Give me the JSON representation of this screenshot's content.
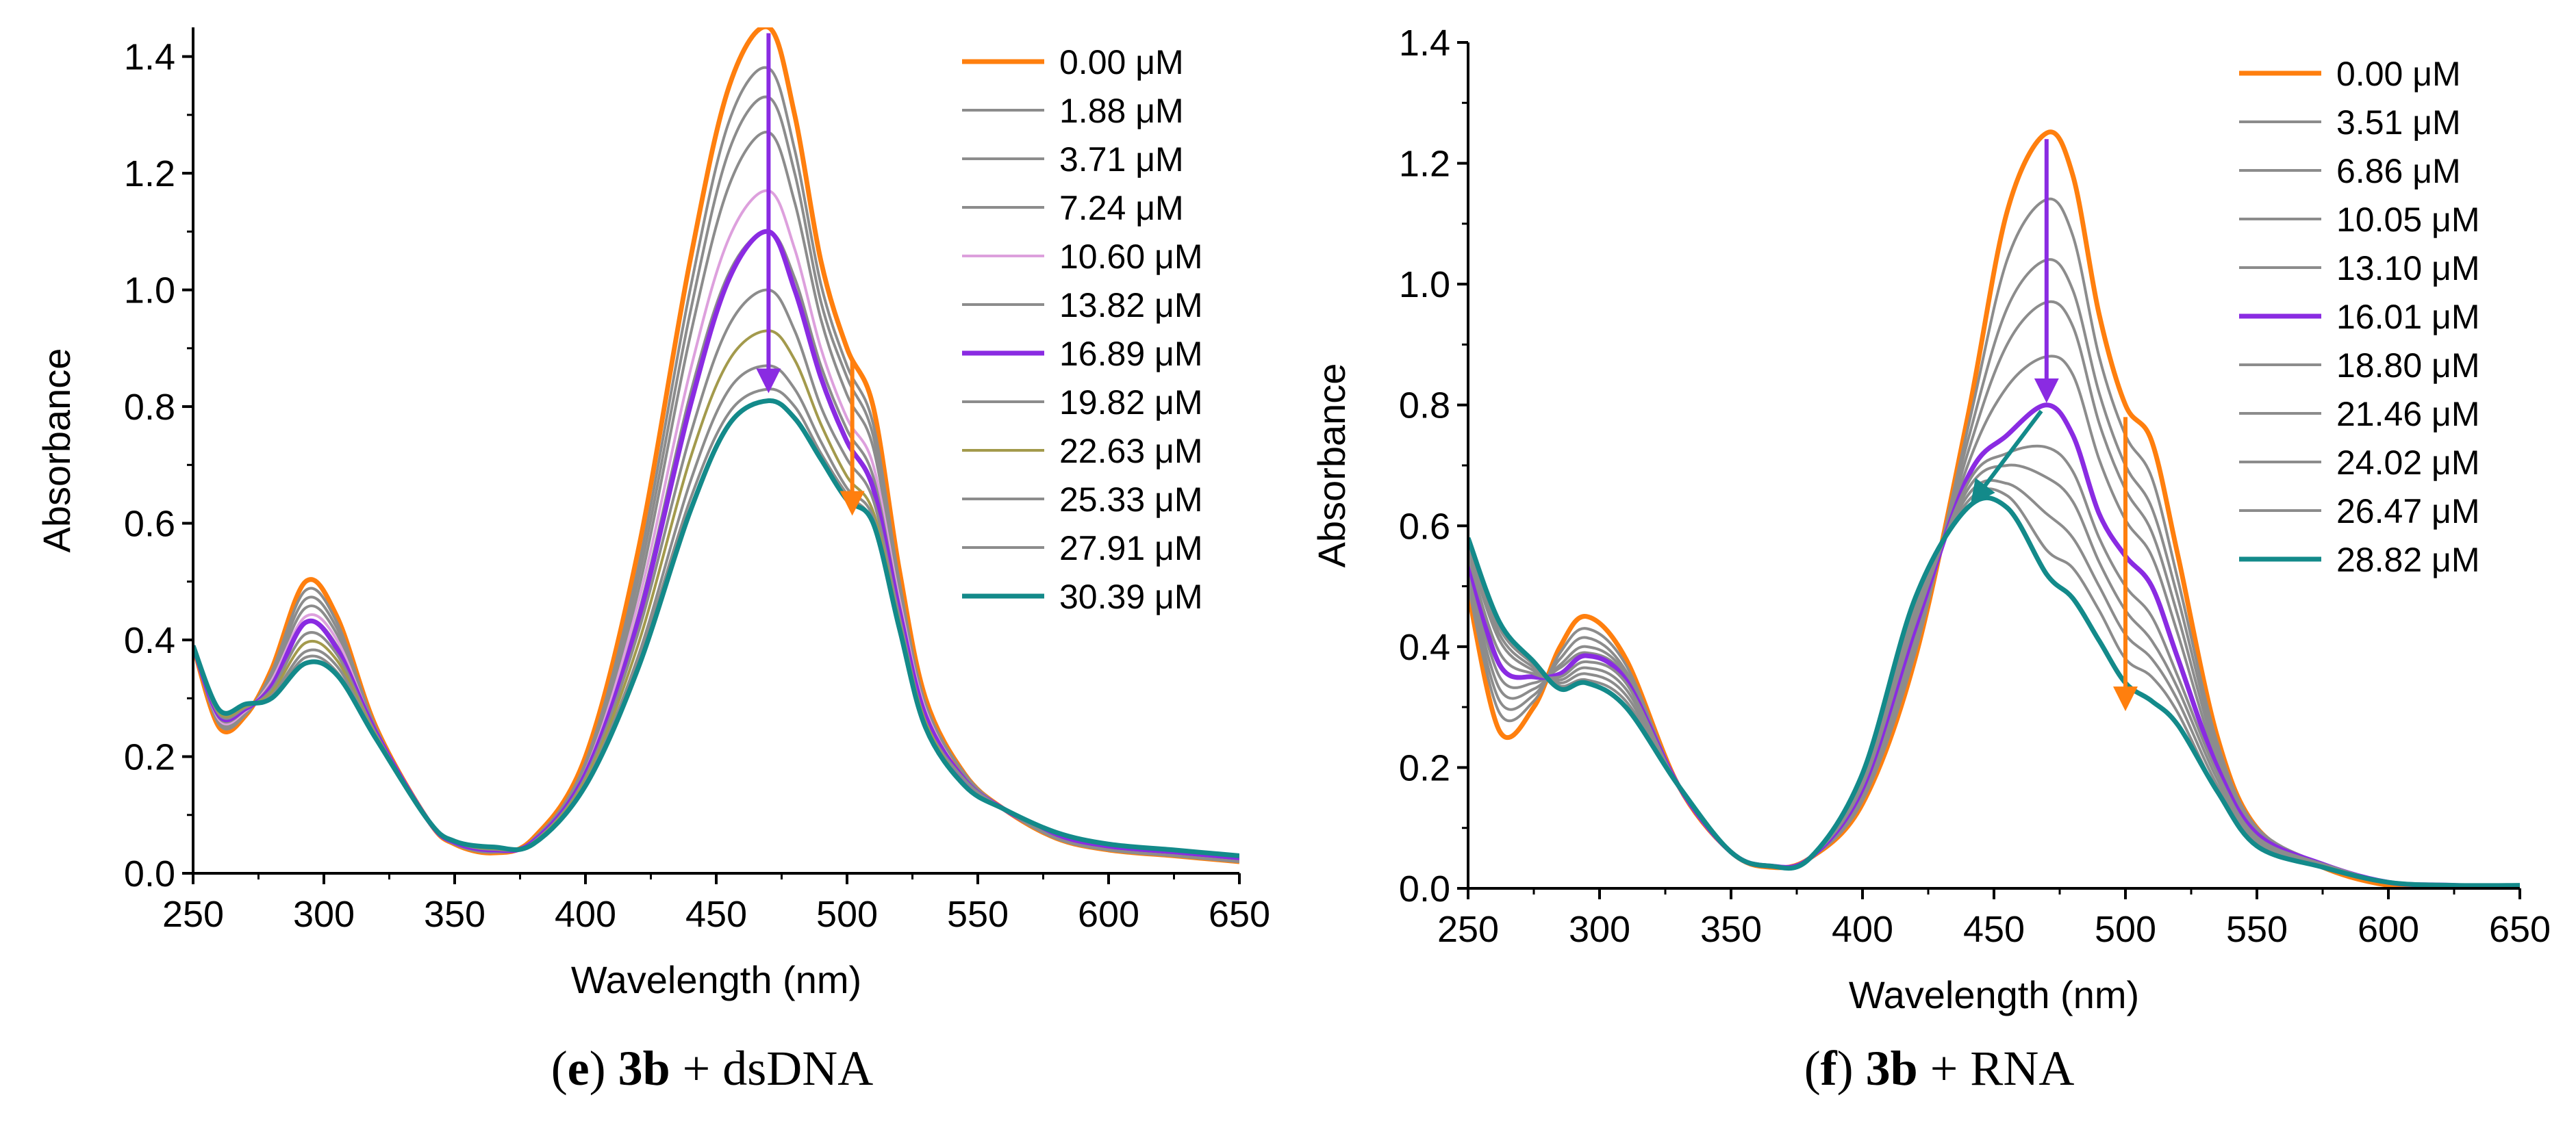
{
  "panels": [
    {
      "caption": {
        "open": "(",
        "letter": "e",
        "close": ") ",
        "compound": "3b",
        "rest": " + dsDNA"
      },
      "chart_data": {
        "type": "line",
        "xlabel": "Wavelength (nm)",
        "ylabel": "Absorbance",
        "xlim": [
          250,
          650
        ],
        "ylim": [
          0.0,
          1.45
        ],
        "xticks": [
          "250",
          "300",
          "350",
          "400",
          "450",
          "500",
          "550",
          "600",
          "650"
        ],
        "yticks": [
          "0.0",
          "0.2",
          "0.4",
          "0.6",
          "0.8",
          "1.0",
          "1.2",
          "1.4"
        ],
        "legend_position": "top-right",
        "x": [
          250,
          260,
          270,
          280,
          293,
          305,
          320,
          340,
          350,
          365,
          380,
          400,
          420,
          440,
          455,
          470,
          480,
          490,
          500,
          510,
          520,
          530,
          545,
          560,
          580,
          600,
          625,
          650
        ],
        "series": [
          {
            "name": "0.00 μM",
            "color": "#ff7f0e",
            "width": 7,
            "values": [
              0.39,
              0.25,
              0.27,
              0.35,
              0.5,
              0.44,
              0.25,
              0.09,
              0.05,
              0.035,
              0.06,
              0.2,
              0.55,
              1.05,
              1.35,
              1.45,
              1.3,
              1.05,
              0.9,
              0.8,
              0.52,
              0.3,
              0.17,
              0.11,
              0.06,
              0.04,
              0.03,
              0.02
            ]
          },
          {
            "name": "1.88 μM",
            "color": "#8c8c8c",
            "width": 4,
            "values": [
              0.39,
              0.255,
              0.272,
              0.345,
              0.485,
              0.43,
              0.248,
              0.09,
              0.05,
              0.036,
              0.058,
              0.19,
              0.52,
              1.0,
              1.29,
              1.38,
              1.24,
              1.01,
              0.87,
              0.77,
              0.5,
              0.29,
              0.17,
              0.11,
              0.06,
              0.04,
              0.03,
              0.02
            ]
          },
          {
            "name": "3.71 μM",
            "color": "#8c8c8c",
            "width": 4,
            "values": [
              0.39,
              0.258,
              0.274,
              0.34,
              0.47,
              0.42,
              0.246,
              0.09,
              0.051,
              0.037,
              0.057,
              0.185,
              0.5,
              0.96,
              1.24,
              1.33,
              1.2,
              0.98,
              0.85,
              0.75,
              0.49,
              0.29,
              0.17,
              0.11,
              0.06,
              0.04,
              0.03,
              0.02
            ]
          },
          {
            "name": "7.24 μM",
            "color": "#8c8c8c",
            "width": 4,
            "values": [
              0.39,
              0.26,
              0.276,
              0.335,
              0.455,
              0.41,
              0.244,
              0.09,
              0.052,
              0.038,
              0.056,
              0.18,
              0.48,
              0.92,
              1.18,
              1.27,
              1.15,
              0.95,
              0.82,
              0.73,
              0.48,
              0.28,
              0.16,
              0.11,
              0.06,
              0.04,
              0.03,
              0.02
            ]
          },
          {
            "name": "10.60 μM",
            "color": "#dda0dd",
            "width": 4,
            "values": [
              0.39,
              0.263,
              0.278,
              0.33,
              0.44,
              0.4,
              0.242,
              0.09,
              0.052,
              0.039,
              0.055,
              0.175,
              0.46,
              0.86,
              1.09,
              1.17,
              1.07,
              0.9,
              0.78,
              0.7,
              0.47,
              0.28,
              0.16,
              0.11,
              0.06,
              0.04,
              0.03,
              0.02
            ]
          },
          {
            "name": "13.82 μM",
            "color": "#8c8c8c",
            "width": 4,
            "values": [
              0.39,
              0.266,
              0.28,
              0.325,
              0.43,
              0.39,
              0.24,
              0.09,
              0.053,
              0.04,
              0.054,
              0.17,
              0.44,
              0.82,
              1.03,
              1.1,
              1.02,
              0.87,
              0.76,
              0.68,
              0.46,
              0.27,
              0.16,
              0.11,
              0.06,
              0.04,
              0.03,
              0.02
            ]
          },
          {
            "name": "16.89 μM",
            "color": "#8a2be2",
            "width": 7,
            "values": [
              0.39,
              0.27,
              0.282,
              0.32,
              0.43,
              0.385,
              0.24,
              0.09,
              0.053,
              0.04,
              0.054,
              0.17,
              0.43,
              0.8,
              1.02,
              1.1,
              1.0,
              0.85,
              0.74,
              0.66,
              0.45,
              0.27,
              0.16,
              0.11,
              0.065,
              0.045,
              0.035,
              0.025
            ]
          },
          {
            "name": "19.82 μM",
            "color": "#8c8c8c",
            "width": 4,
            "values": [
              0.39,
              0.272,
              0.284,
              0.315,
              0.41,
              0.375,
              0.238,
              0.09,
              0.054,
              0.041,
              0.053,
              0.165,
              0.41,
              0.75,
              0.94,
              1.0,
              0.93,
              0.8,
              0.71,
              0.64,
              0.44,
              0.26,
              0.16,
              0.11,
              0.06,
              0.04,
              0.03,
              0.02
            ]
          },
          {
            "name": "22.63 μM",
            "color": "#a39a4c",
            "width": 4,
            "values": [
              0.39,
              0.275,
              0.286,
              0.31,
              0.395,
              0.365,
              0.236,
              0.09,
              0.054,
              0.042,
              0.052,
              0.16,
              0.39,
              0.71,
              0.88,
              0.93,
              0.88,
              0.77,
              0.68,
              0.62,
              0.43,
              0.26,
              0.15,
              0.11,
              0.06,
              0.04,
              0.03,
              0.02
            ]
          },
          {
            "name": "25.33 μM",
            "color": "#8c8c8c",
            "width": 4,
            "values": [
              0.39,
              0.278,
              0.288,
              0.305,
              0.38,
              0.355,
              0.234,
              0.09,
              0.055,
              0.043,
              0.051,
              0.155,
              0.37,
              0.67,
              0.83,
              0.87,
              0.83,
              0.74,
              0.66,
              0.61,
              0.42,
              0.25,
              0.15,
              0.11,
              0.06,
              0.04,
              0.03,
              0.02
            ]
          },
          {
            "name": "27.91 μM",
            "color": "#8c8c8c",
            "width": 4,
            "values": [
              0.39,
              0.28,
              0.29,
              0.3,
              0.37,
              0.345,
              0.232,
              0.09,
              0.055,
              0.044,
              0.05,
              0.15,
              0.36,
              0.64,
              0.79,
              0.83,
              0.8,
              0.72,
              0.65,
              0.6,
              0.42,
              0.25,
              0.15,
              0.11,
              0.06,
              0.04,
              0.03,
              0.02
            ]
          },
          {
            "name": "30.39 μM",
            "color": "#138a8a",
            "width": 7,
            "values": [
              0.39,
              0.28,
              0.29,
              0.3,
              0.36,
              0.34,
              0.23,
              0.09,
              0.055,
              0.045,
              0.05,
              0.15,
              0.35,
              0.62,
              0.77,
              0.81,
              0.78,
              0.71,
              0.64,
              0.6,
              0.42,
              0.25,
              0.15,
              0.11,
              0.07,
              0.05,
              0.04,
              0.03
            ]
          }
        ],
        "arrows": [
          {
            "color": "#8a2be2",
            "x1": 470,
            "y1": 1.44,
            "x2": 470,
            "y2": 0.83
          },
          {
            "color": "#ff7f0e",
            "x1": 502,
            "y1": 0.88,
            "x2": 502,
            "y2": 0.62
          }
        ]
      }
    },
    {
      "caption": {
        "open": "(",
        "letter": "f",
        "close": ") ",
        "compound": "3b",
        "rest": " + RNA"
      },
      "chart_data": {
        "type": "line",
        "xlabel": "Wavelength (nm)",
        "ylabel": "Absorbance",
        "xlim": [
          250,
          650
        ],
        "ylim": [
          0.0,
          1.4
        ],
        "xticks": [
          "250",
          "300",
          "350",
          "400",
          "450",
          "500",
          "550",
          "600",
          "650"
        ],
        "yticks": [
          "0.0",
          "0.2",
          "0.4",
          "0.6",
          "0.8",
          "1.0",
          "1.2",
          "1.4"
        ],
        "legend_position": "top-right",
        "x": [
          250,
          262,
          275,
          285,
          295,
          310,
          330,
          350,
          365,
          380,
          400,
          420,
          440,
          455,
          470,
          480,
          490,
          500,
          510,
          520,
          535,
          550,
          575,
          600,
          625,
          650
        ],
        "series": [
          {
            "name": "0.00 μM",
            "color": "#ff7f0e",
            "width": 7,
            "values": [
              0.49,
              0.26,
              0.3,
              0.4,
              0.45,
              0.38,
              0.17,
              0.06,
              0.035,
              0.05,
              0.14,
              0.38,
              0.78,
              1.12,
              1.25,
              1.18,
              0.95,
              0.8,
              0.74,
              0.55,
              0.25,
              0.1,
              0.035,
              0.005,
              0.0,
              0.0
            ]
          },
          {
            "name": "3.51 μM",
            "color": "#8c8c8c",
            "width": 4,
            "values": [
              0.5,
              0.29,
              0.31,
              0.39,
              0.43,
              0.37,
              0.17,
              0.06,
              0.036,
              0.05,
              0.145,
              0.39,
              0.76,
              1.04,
              1.14,
              1.08,
              0.88,
              0.75,
              0.68,
              0.51,
              0.24,
              0.1,
              0.04,
              0.01,
              0.005,
              0.0
            ]
          },
          {
            "name": "6.86 μM",
            "color": "#8c8c8c",
            "width": 4,
            "values": [
              0.51,
              0.31,
              0.32,
              0.38,
              0.415,
              0.36,
              0.17,
              0.06,
              0.036,
              0.05,
              0.15,
              0.4,
              0.74,
              0.96,
              1.04,
              0.99,
              0.82,
              0.7,
              0.63,
              0.48,
              0.23,
              0.1,
              0.04,
              0.01,
              0.005,
              0.0
            ]
          },
          {
            "name": "10.05 μM",
            "color": "#8c8c8c",
            "width": 4,
            "values": [
              0.52,
              0.33,
              0.33,
              0.37,
              0.4,
              0.355,
              0.17,
              0.06,
              0.037,
              0.05,
              0.155,
              0.41,
              0.72,
              0.9,
              0.97,
              0.93,
              0.77,
              0.66,
              0.59,
              0.45,
              0.22,
              0.095,
              0.04,
              0.01,
              0.005,
              0.0
            ]
          },
          {
            "name": "13.10 μM",
            "color": "#8c8c8c",
            "width": 4,
            "values": [
              0.53,
              0.35,
              0.34,
              0.365,
              0.39,
              0.35,
              0.17,
              0.06,
              0.037,
              0.05,
              0.16,
              0.42,
              0.7,
              0.83,
              0.88,
              0.85,
              0.71,
              0.61,
              0.55,
              0.42,
              0.21,
              0.09,
              0.04,
              0.01,
              0.005,
              0.0
            ]
          },
          {
            "name": "16.01 μM",
            "color": "#8a2be2",
            "width": 7,
            "values": [
              0.54,
              0.37,
              0.35,
              0.355,
              0.385,
              0.345,
              0.17,
              0.06,
              0.037,
              0.05,
              0.165,
              0.43,
              0.68,
              0.75,
              0.8,
              0.75,
              0.62,
              0.55,
              0.5,
              0.38,
              0.2,
              0.09,
              0.04,
              0.01,
              0.005,
              0.0
            ]
          },
          {
            "name": "18.80 μM",
            "color": "#8c8c8c",
            "width": 4,
            "values": [
              0.55,
              0.39,
              0.355,
              0.35,
              0.375,
              0.34,
              0.17,
              0.06,
              0.037,
              0.05,
              0.17,
              0.44,
              0.67,
              0.72,
              0.73,
              0.69,
              0.58,
              0.5,
              0.45,
              0.35,
              0.19,
              0.085,
              0.04,
              0.01,
              0.005,
              0.0
            ]
          },
          {
            "name": "21.46 μM",
            "color": "#8c8c8c",
            "width": 4,
            "values": [
              0.56,
              0.41,
              0.36,
              0.345,
              0.365,
              0.33,
              0.17,
              0.06,
              0.037,
              0.05,
              0.175,
              0.45,
              0.66,
              0.7,
              0.68,
              0.64,
              0.54,
              0.46,
              0.41,
              0.33,
              0.18,
              0.08,
              0.04,
              0.01,
              0.005,
              0.0
            ]
          },
          {
            "name": "24.02 μM",
            "color": "#8c8c8c",
            "width": 4,
            "values": [
              0.57,
              0.42,
              0.365,
              0.34,
              0.355,
              0.32,
              0.17,
              0.06,
              0.037,
              0.05,
              0.18,
              0.46,
              0.65,
              0.67,
              0.62,
              0.58,
              0.5,
              0.42,
              0.38,
              0.31,
              0.17,
              0.08,
              0.04,
              0.01,
              0.005,
              0.0
            ]
          },
          {
            "name": "26.47 μM",
            "color": "#8c8c8c",
            "width": 4,
            "values": [
              0.575,
              0.43,
              0.37,
              0.335,
              0.345,
              0.31,
              0.17,
              0.06,
              0.037,
              0.05,
              0.185,
              0.47,
              0.64,
              0.65,
              0.56,
              0.53,
              0.46,
              0.38,
              0.35,
              0.29,
              0.16,
              0.075,
              0.04,
              0.01,
              0.005,
              0.0
            ]
          },
          {
            "name": "28.82 μM",
            "color": "#138a8a",
            "width": 7,
            "values": [
              0.58,
              0.44,
              0.375,
              0.33,
              0.34,
              0.3,
              0.17,
              0.06,
              0.037,
              0.05,
              0.19,
              0.48,
              0.63,
              0.63,
              0.52,
              0.48,
              0.41,
              0.34,
              0.31,
              0.27,
              0.16,
              0.07,
              0.035,
              0.01,
              0.005,
              0.005
            ]
          }
        ],
        "arrows": [
          {
            "color": "#8a2be2",
            "x1": 470,
            "y1": 1.24,
            "x2": 470,
            "y2": 0.81
          },
          {
            "color": "#ff7f0e",
            "x1": 500,
            "y1": 0.78,
            "x2": 500,
            "y2": 0.3
          },
          {
            "color": "#138a8a",
            "x1": 468,
            "y1": 0.79,
            "x2": 442,
            "y2": 0.64
          }
        ]
      }
    }
  ]
}
